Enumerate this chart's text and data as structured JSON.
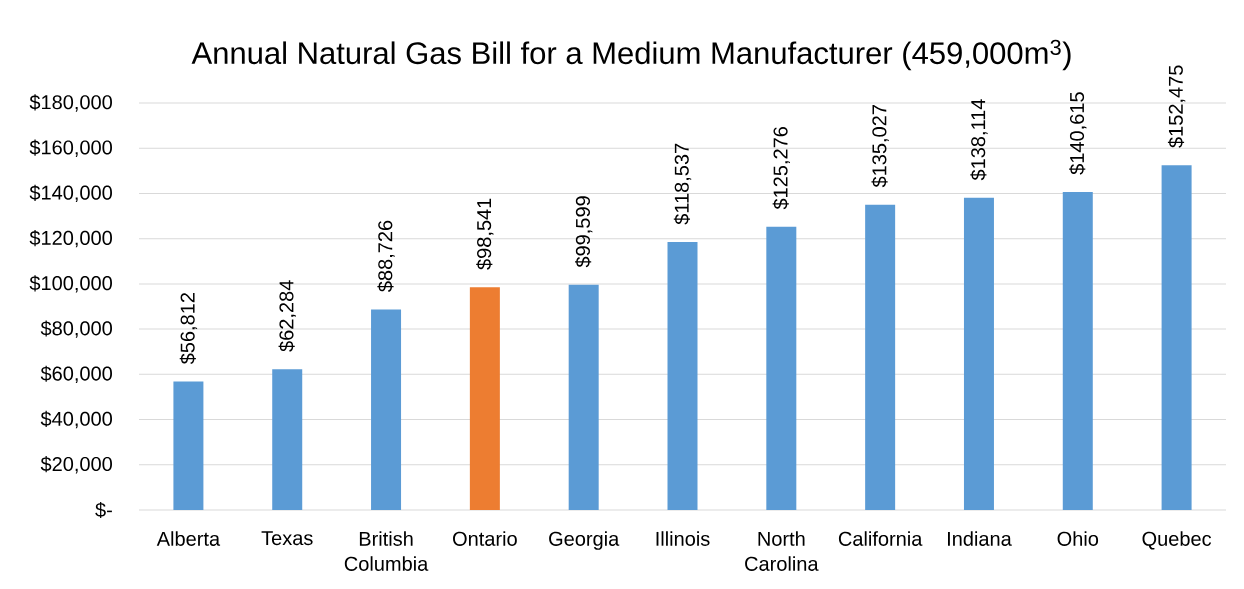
{
  "chart_data": {
    "type": "bar",
    "title": "Annual Natural Gas Bill for a Medium Manufacturer (459,000m$^{3}$)",
    "categories": [
      "Alberta",
      "Texas",
      "British Columbia",
      "Ontario",
      "Georgia",
      "Illinois",
      "North Carolina",
      "California",
      "Indiana",
      "Ohio",
      "Quebec"
    ],
    "values": [
      56812,
      62284,
      88726,
      98541,
      99599,
      118537,
      125276,
      135027,
      138114,
      140615,
      152475
    ],
    "colors": [
      "#5b9bd5",
      "#5b9bd5",
      "#5b9bd5",
      "#ed7d31",
      "#5b9bd5",
      "#5b9bd5",
      "#5b9bd5",
      "#5b9bd5",
      "#5b9bd5",
      "#5b9bd5",
      "#5b9bd5"
    ],
    "value_labels": [
      "$56,812",
      "$62,284",
      "$88,726",
      "$98,541",
      "$99,599",
      "$118,537",
      "$125,276",
      "$135,027",
      "$138,114",
      "$140,615",
      "$152,475"
    ],
    "ylim": [
      0,
      180000
    ],
    "yticks": [
      {
        "value": 0,
        "label": "$-"
      },
      {
        "value": 20000,
        "label": "$20,000"
      },
      {
        "value": 40000,
        "label": "$40,000"
      },
      {
        "value": 60000,
        "label": "$60,000"
      },
      {
        "value": 80000,
        "label": "$80,000"
      },
      {
        "value": 100000,
        "label": "$100,000"
      },
      {
        "value": 120000,
        "label": "$120,000"
      },
      {
        "value": 140000,
        "label": "$140,000"
      },
      {
        "value": 160000,
        "label": "$160,000"
      },
      {
        "value": 180000,
        "label": "$180,000"
      }
    ],
    "grid": "y"
  }
}
